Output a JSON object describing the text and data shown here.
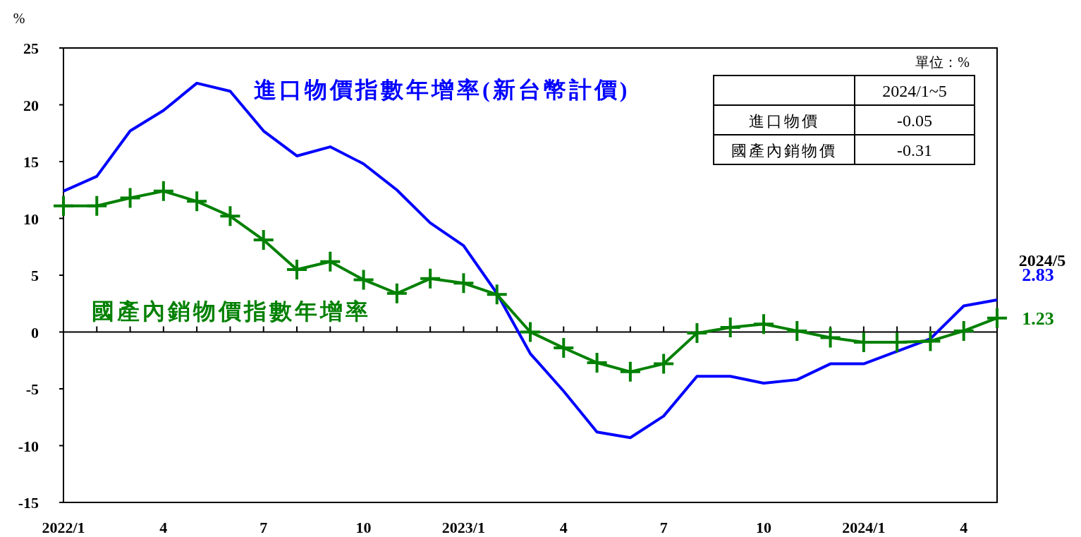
{
  "chart_data": {
    "type": "line",
    "ylabel": "%",
    "categories": [
      "2022/1",
      null,
      null,
      "4",
      null,
      null,
      "7",
      null,
      null,
      "10",
      null,
      null,
      "2023/1",
      null,
      null,
      "4",
      null,
      null,
      "7",
      null,
      null,
      "10",
      null,
      null,
      "2024/1",
      null,
      null,
      "4",
      null
    ],
    "series": [
      {
        "name": "進口物價指數年增率(新台幣計價)",
        "color": "#0000ff",
        "marker": "none",
        "values": [
          12.4,
          13.7,
          17.7,
          19.5,
          21.9,
          21.2,
          17.7,
          15.5,
          16.3,
          14.8,
          12.5,
          9.6,
          7.6,
          3.4,
          -1.9,
          -5.2,
          -8.8,
          -9.3,
          -7.4,
          -3.9,
          -3.9,
          -4.5,
          -4.2,
          -2.8,
          -2.8,
          -1.7,
          -0.6,
          2.3,
          2.83
        ],
        "value_labels": [
          null,
          null,
          null,
          null,
          null,
          null,
          null,
          null,
          null,
          null,
          null,
          null,
          null,
          null,
          null,
          null,
          null,
          null,
          null,
          null,
          null,
          null,
          null,
          null,
          null,
          null,
          null,
          null,
          "2.83"
        ]
      },
      {
        "name": "國產內銷物價指數年增率",
        "color": "#008000",
        "marker": "cross",
        "values": [
          11.1,
          11.1,
          11.8,
          12.4,
          11.5,
          10.2,
          8.1,
          5.5,
          6.2,
          4.6,
          3.4,
          4.7,
          4.3,
          3.3,
          0.0,
          -1.4,
          -2.7,
          -3.5,
          -2.8,
          -0.1,
          0.4,
          0.7,
          0.1,
          -0.5,
          -0.9,
          -0.9,
          -0.8,
          0.1,
          1.23
        ],
        "value_labels": [
          null,
          null,
          null,
          null,
          null,
          null,
          null,
          null,
          null,
          null,
          null,
          null,
          null,
          null,
          null,
          null,
          null,
          null,
          null,
          null,
          null,
          null,
          null,
          null,
          null,
          null,
          null,
          null,
          "1.23"
        ]
      }
    ],
    "ylim": [
      -15,
      25
    ],
    "yticks": [
      -15,
      -10,
      -5,
      0,
      5,
      10,
      15,
      20,
      25
    ],
    "annotations": [
      "2024/5",
      "單位：%",
      "2024/1~5",
      "進口物價",
      "-0.05",
      "國產內銷物價",
      "-0.31"
    ]
  }
}
